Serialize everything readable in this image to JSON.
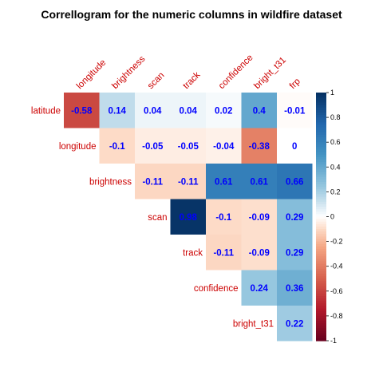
{
  "chart_data": {
    "type": "heatmap",
    "title": "Correllogram for the numeric columns in wildfire dataset",
    "row_labels": [
      "latitude",
      "longitude",
      "brightness",
      "scan",
      "track",
      "confidence",
      "bright_t31"
    ],
    "col_labels": [
      "longitude",
      "brightness",
      "scan",
      "track",
      "confidence",
      "bright_t31",
      "frp"
    ],
    "matrix": [
      [
        -0.58,
        0.14,
        0.04,
        0.04,
        0.02,
        0.4,
        -0.01
      ],
      [
        null,
        -0.1,
        -0.05,
        -0.05,
        -0.04,
        -0.38,
        0
      ],
      [
        null,
        null,
        -0.11,
        -0.11,
        0.61,
        0.61,
        0.66
      ],
      [
        null,
        null,
        null,
        0.98,
        -0.1,
        -0.09,
        0.29
      ],
      [
        null,
        null,
        null,
        null,
        -0.11,
        -0.09,
        0.29
      ],
      [
        null,
        null,
        null,
        null,
        null,
        0.24,
        0.36
      ],
      [
        null,
        null,
        null,
        null,
        null,
        null,
        0.22
      ]
    ],
    "colorbar": {
      "range": [
        -1,
        1
      ],
      "ticks": [
        1,
        0.8,
        0.6,
        0.4,
        0.2,
        0,
        -0.2,
        -0.4,
        -0.6,
        -0.8,
        -1
      ],
      "tick_labels": [
        "1",
        "0.8",
        "0.6",
        "0.4",
        "0.2",
        "0",
        "-0.2",
        "-0.4",
        "-0.6",
        "-0.8",
        "-1"
      ]
    },
    "colors": {
      "label": "#cc0000",
      "value_text": "#0000ff",
      "negative_end": "#67001f",
      "neutral": "#ffffff",
      "positive_end": "#053061"
    }
  }
}
